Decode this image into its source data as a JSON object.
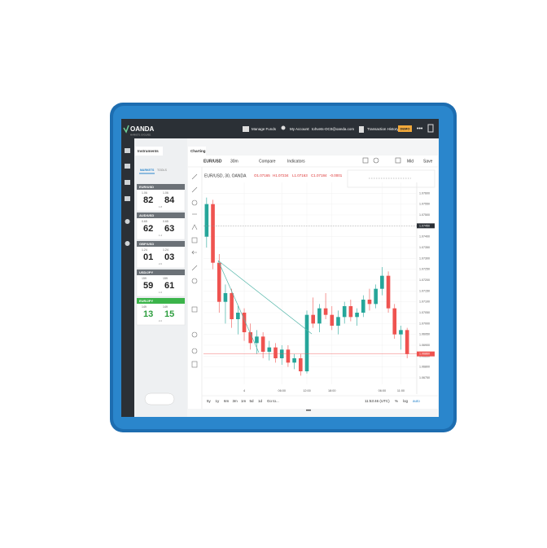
{
  "header": {
    "brand": "OANDA",
    "tagline": "MARKETS. EVOLVED.",
    "manage_funds": "Manage Funds",
    "account_label": "My Account:",
    "account_email": "tohvets-OC0@oanda.com",
    "transaction_history": "Transaction History",
    "mode": "DEMO"
  },
  "instruments": {
    "tab": "Instruments",
    "markets_tab": "MARKETS",
    "tools_tab": "TOOLS",
    "items": [
      {
        "name": "EUR/USD",
        "bid_big": "1.06",
        "ask_big": "1.06",
        "bid": "82",
        "ask": "84",
        "spread": "1.8"
      },
      {
        "name": "AUD/USD",
        "bid_big": "0.65",
        "ask_big": "0.65",
        "bid": "62",
        "ask": "63",
        "spread": "1.4"
      },
      {
        "name": "GBP/USD",
        "bid_big": "1.24",
        "ask_big": "1.24",
        "bid": "01",
        "ask": "03",
        "spread": "2.0"
      },
      {
        "name": "USD/JPY",
        "bid_big": "159",
        "ask_big": "159",
        "bid": "59",
        "ask": "61",
        "spread": "1.6"
      },
      {
        "name": "EUR/JPY",
        "bid_big": "149",
        "ask_big": "149",
        "bid": "13",
        "ask": "15",
        "spread": "2.2",
        "active": true
      }
    ]
  },
  "chart_tab": "Charting",
  "toolbar": {
    "symbol": "EUR/USD",
    "interval": "30m",
    "compare": "Compare",
    "indicators": "Indicators",
    "price_type": "Mid",
    "save": "Save"
  },
  "legend": {
    "title": "EUR/USD, 30, OANDA",
    "open": "O1.07165",
    "high": "H1.07234",
    "low": "L1.07163",
    "close": "C1.07184",
    "change": "-0.0001"
  },
  "chart": {
    "type": "candlestick",
    "up_color": "#26a69a",
    "down_color": "#ef5350",
    "ylim": [
      1.0672,
      1.0762
    ],
    "yticks": [
      {
        "value": 1.0675,
        "label": "1.06750"
      },
      {
        "value": 1.068,
        "label": "1.06800"
      },
      {
        "value": 1.0685,
        "label": "1.06850"
      },
      {
        "value": 1.069,
        "label": "1.06900"
      },
      {
        "value": 1.0695,
        "label": "1.06950"
      },
      {
        "value": 1.07,
        "label": "1.07000"
      },
      {
        "value": 1.0705,
        "label": "1.07050"
      },
      {
        "value": 1.071,
        "label": "1.07100"
      },
      {
        "value": 1.0715,
        "label": "1.07150"
      },
      {
        "value": 1.072,
        "label": "1.07200"
      },
      {
        "value": 1.0725,
        "label": "1.07250"
      },
      {
        "value": 1.073,
        "label": "1.07300"
      },
      {
        "value": 1.0735,
        "label": "1.07350"
      },
      {
        "value": 1.074,
        "label": "1.07400"
      },
      {
        "value": 1.0745,
        "label": "1.07450"
      },
      {
        "value": 1.075,
        "label": "1.07500"
      },
      {
        "value": 1.0755,
        "label": "1.07550"
      },
      {
        "value": 1.076,
        "label": "1.07600"
      }
    ],
    "crosshair": {
      "value": 1.0745,
      "label": "1.07450"
    },
    "last_price": {
      "value": 1.0686,
      "label": "1.06860"
    },
    "times": [
      null,
      null,
      null,
      null,
      null,
      null,
      "4",
      null,
      null,
      null,
      null,
      null,
      "06:00",
      null,
      null,
      null,
      "12:00",
      null,
      null,
      null,
      "18:00",
      null,
      null,
      null,
      null,
      null,
      null,
      null,
      "06:00",
      null,
      null,
      "11:00",
      null
    ],
    "candles": [
      [
        1.074,
        1.0758,
        1.0735,
        1.0755
      ],
      [
        1.0755,
        1.0757,
        1.0725,
        1.0728
      ],
      [
        1.0728,
        1.0732,
        1.0705,
        1.071
      ],
      [
        1.071,
        1.0718,
        1.07,
        1.0714
      ],
      [
        1.0714,
        1.0716,
        1.0698,
        1.0702
      ],
      [
        1.0702,
        1.0708,
        1.0695,
        1.0705
      ],
      [
        1.0705,
        1.0707,
        1.0692,
        1.0696
      ],
      [
        1.0696,
        1.07,
        1.0688,
        1.0691
      ],
      [
        1.0691,
        1.0697,
        1.0686,
        1.0694
      ],
      [
        1.0694,
        1.0696,
        1.0684,
        1.0687
      ],
      [
        1.0687,
        1.0692,
        1.0683,
        1.0689
      ],
      [
        1.0689,
        1.0691,
        1.0682,
        1.0684
      ],
      [
        1.0684,
        1.069,
        1.0681,
        1.0688
      ],
      [
        1.0688,
        1.069,
        1.068,
        1.0682
      ],
      [
        1.0682,
        1.0686,
        1.0679,
        1.0684
      ],
      [
        1.0684,
        1.0686,
        1.0676,
        1.0678
      ],
      [
        1.0678,
        1.0706,
        1.0677,
        1.0704
      ],
      [
        1.0704,
        1.0712,
        1.0698,
        1.07
      ],
      [
        1.07,
        1.0709,
        1.0696,
        1.0707
      ],
      [
        1.0707,
        1.0714,
        1.0702,
        1.0704
      ],
      [
        1.0704,
        1.0708,
        1.0697,
        1.0699
      ],
      [
        1.0699,
        1.0706,
        1.0695,
        1.0703
      ],
      [
        1.0703,
        1.071,
        1.07,
        1.0708
      ],
      [
        1.0708,
        1.0711,
        1.0701,
        1.0703
      ],
      [
        1.0703,
        1.0707,
        1.0699,
        1.0705
      ],
      [
        1.0705,
        1.0713,
        1.0703,
        1.0711
      ],
      [
        1.0711,
        1.0716,
        1.0706,
        1.0709
      ],
      [
        1.0709,
        1.0718,
        1.0707,
        1.0716
      ],
      [
        1.0716,
        1.0726,
        1.0713,
        1.0722
      ],
      [
        1.0722,
        1.0724,
        1.0705,
        1.0707
      ],
      [
        1.0707,
        1.0709,
        1.0693,
        1.0695
      ],
      [
        1.0695,
        1.0699,
        1.0688,
        1.0697
      ],
      [
        1.0697,
        1.0698,
        1.0684,
        1.0686
      ]
    ]
  },
  "footer": {
    "ranges": [
      "5y",
      "1y",
      "6m",
      "3m",
      "1m",
      "5d",
      "1d"
    ],
    "goto": "Go to...",
    "clock": "11:53:46 (UTC)",
    "percent": "%",
    "log": "log",
    "auto": "auto"
  }
}
